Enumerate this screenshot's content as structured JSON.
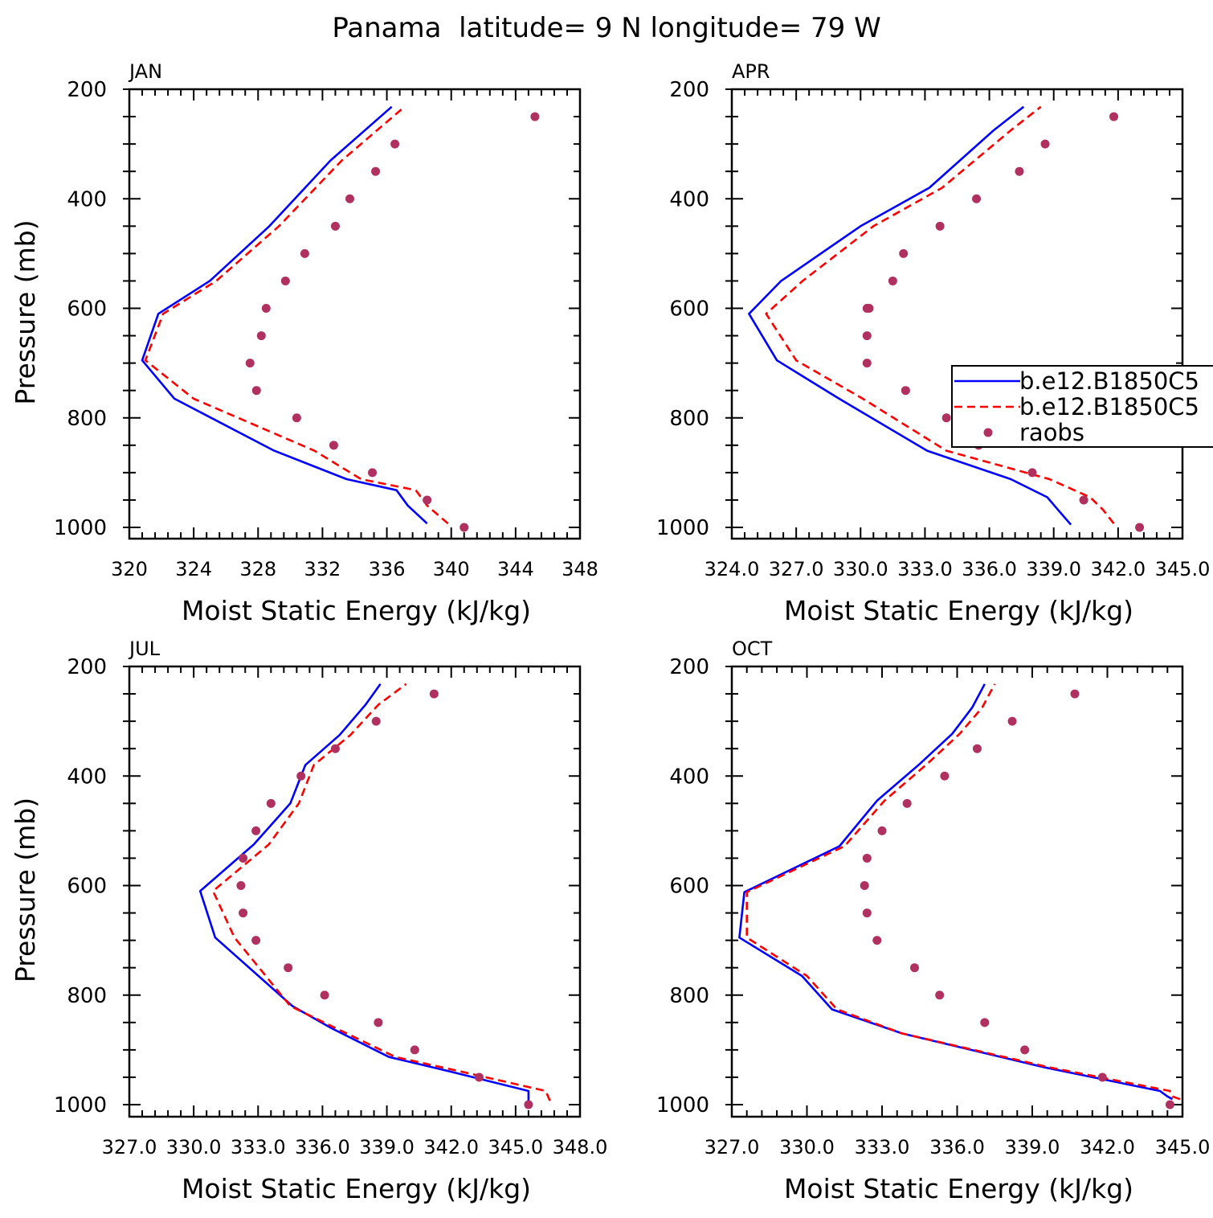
{
  "figure_title": "Panama  latitude= 9 N longitude= 79 W",
  "legend": {
    "entries": [
      {
        "label": "b.e12.B1850C5",
        "style": "solid",
        "color": "#0000ff"
      },
      {
        "label": "b.e12.B1850C5",
        "style": "dashed",
        "color": "#ff0000"
      },
      {
        "label": "raobs",
        "style": "marker",
        "color": "#b03060"
      }
    ]
  },
  "chart_data": [
    {
      "type": "line",
      "title": "JAN",
      "xlabel": "Moist Static Energy (kJ/kg)",
      "ylabel": "Pressure (mb)",
      "xlim": [
        320,
        348
      ],
      "ylim": [
        1000,
        200
      ],
      "xticks": [
        320,
        324,
        328,
        332,
        336,
        340,
        344,
        348
      ],
      "xtick_labels": [
        "320",
        "324",
        "328",
        "332",
        "336",
        "340",
        "344",
        "348"
      ],
      "yticks": [
        200,
        400,
        600,
        800,
        1000
      ],
      "ytick_labels": [
        "200",
        "400",
        "600",
        "800",
        "1000"
      ],
      "series": [
        {
          "style": "solid",
          "color": "#0000ff",
          "x": [
            338.5,
            337.3,
            336.6,
            333.5,
            329.0,
            322.8,
            320.8,
            321.8,
            325.0,
            328.7,
            332.5,
            336.3
          ],
          "y": [
            993,
            960,
            932,
            912,
            860,
            765,
            695,
            610,
            550,
            450,
            330,
            232
          ]
        },
        {
          "style": "dashed",
          "color": "#ff0000",
          "x": [
            339.8,
            338.5,
            337.8,
            334.4,
            331.5,
            324.0,
            321.0,
            322.1,
            325.4,
            329.3,
            333.2,
            337.1
          ],
          "y": [
            993,
            960,
            932,
            912,
            860,
            765,
            695,
            610,
            550,
            450,
            330,
            232
          ]
        },
        {
          "style": "marker",
          "color": "#b03060",
          "x": [
            340.8,
            338.5,
            335.1,
            332.7,
            330.4,
            327.9,
            327.5,
            328.2,
            328.5,
            329.7,
            330.9,
            332.8,
            333.7,
            335.3,
            336.5,
            345.2
          ],
          "y": [
            1000,
            950,
            900,
            850,
            800,
            750,
            700,
            650,
            600,
            550,
            500,
            450,
            400,
            350,
            300,
            250
          ]
        }
      ]
    },
    {
      "type": "line",
      "title": "APR",
      "xlabel": "Moist Static Energy (kJ/kg)",
      "ylabel": "",
      "xlim": [
        324,
        345
      ],
      "ylim": [
        1000,
        200
      ],
      "xticks": [
        324,
        327,
        330,
        333,
        336,
        339,
        342,
        345
      ],
      "xtick_labels": [
        "324.0",
        "327.0",
        "330.0",
        "333.0",
        "336.0",
        "339.0",
        "342.0",
        "345.0"
      ],
      "yticks": [
        200,
        400,
        600,
        800,
        1000
      ],
      "yticks_labels_note": "",
      "ytick_labels": [
        "200",
        "400",
        "600",
        "800",
        "1000"
      ],
      "series": [
        {
          "style": "solid",
          "color": "#0000ff",
          "x": [
            339.8,
            339.2,
            338.7,
            337.0,
            333.1,
            329.0,
            326.1,
            324.8,
            326.3,
            330.0,
            333.2,
            336.2,
            337.6
          ],
          "y": [
            995,
            968,
            945,
            912,
            860,
            765,
            695,
            610,
            550,
            450,
            380,
            275,
            232
          ]
        },
        {
          "style": "dashed",
          "color": "#ff0000",
          "x": [
            341.8,
            341.3,
            340.7,
            338.8,
            334.0,
            330.1,
            327.0,
            325.6,
            327.3,
            330.6,
            333.8,
            337.0,
            338.4
          ],
          "y": [
            993,
            968,
            945,
            912,
            860,
            765,
            695,
            610,
            550,
            450,
            380,
            275,
            232
          ]
        },
        {
          "style": "marker",
          "color": "#b03060",
          "x": [
            343.0,
            340.4,
            338.0,
            335.5,
            334.0,
            332.1,
            330.3,
            330.3,
            330.3,
            330.4,
            331.5,
            332.0,
            333.7,
            335.4,
            337.4,
            338.6,
            341.8
          ],
          "y": [
            1000,
            950,
            900,
            850,
            800,
            750,
            700,
            650,
            600,
            600,
            550,
            500,
            450,
            400,
            350,
            300,
            250
          ]
        }
      ]
    },
    {
      "type": "line",
      "title": "JUL",
      "xlabel": "Moist Static Energy (kJ/kg)",
      "ylabel": "Pressure (mb)",
      "xlim": [
        327,
        348
      ],
      "ylim": [
        1000,
        200
      ],
      "xticks": [
        327,
        330,
        333,
        336,
        339,
        342,
        345,
        348
      ],
      "xtick_labels": [
        "327.0",
        "330.0",
        "333.0",
        "336.0",
        "339.0",
        "342.0",
        "345.0",
        "348.0"
      ],
      "yticks": [
        200,
        400,
        600,
        800,
        1000
      ],
      "ytick_labels": [
        "200",
        "400",
        "600",
        "800",
        "1000"
      ],
      "series": [
        {
          "style": "solid",
          "color": "#0000ff",
          "x": [
            345.6,
            345.6,
            342.0,
            339.1,
            336.4,
            334.6,
            331.0,
            330.3,
            332.8,
            334.5,
            335.2,
            336.8,
            338.0,
            338.7
          ],
          "y": [
            993,
            975,
            940,
            913,
            860,
            820,
            695,
            610,
            525,
            450,
            380,
            325,
            270,
            232
          ]
        },
        {
          "style": "dashed",
          "color": "#ff0000",
          "x": [
            346.6,
            346.4,
            342.5,
            339.4,
            336.6,
            334.5,
            331.9,
            330.9,
            333.5,
            334.9,
            335.6,
            337.3,
            338.6,
            339.9
          ],
          "y": [
            993,
            975,
            940,
            913,
            860,
            820,
            695,
            610,
            525,
            450,
            380,
            325,
            270,
            232
          ]
        },
        {
          "style": "marker",
          "color": "#b03060",
          "x": [
            345.6,
            343.3,
            340.3,
            338.6,
            336.1,
            334.4,
            332.9,
            332.3,
            332.2,
            332.3,
            332.9,
            333.6,
            335.0,
            336.6,
            338.5,
            341.2
          ],
          "y": [
            1000,
            950,
            900,
            850,
            800,
            750,
            700,
            650,
            600,
            550,
            500,
            450,
            400,
            350,
            300,
            250
          ]
        }
      ]
    },
    {
      "type": "line",
      "title": "OCT",
      "xlabel": "Moist Static Energy (kJ/kg)",
      "ylabel": "",
      "xlim": [
        327,
        345
      ],
      "ylim": [
        1000,
        200
      ],
      "xticks": [
        327,
        330,
        333,
        336,
        339,
        342,
        345
      ],
      "xtick_labels": [
        "327.0",
        "330.0",
        "333.0",
        "336.0",
        "339.0",
        "342.0",
        "345.0"
      ],
      "yticks": [
        200,
        400,
        600,
        800,
        1000
      ],
      "ytick_labels": [
        "200",
        "400",
        "600",
        "800",
        "1000"
      ],
      "series": [
        {
          "style": "solid",
          "color": "#0000ff",
          "x": [
            344.6,
            344.4,
            344.1,
            339.5,
            333.8,
            331.0,
            329.8,
            327.3,
            327.5,
            331.3,
            332.8,
            334.5,
            335.8,
            336.6,
            337.1
          ],
          "y": [
            990,
            985,
            975,
            932,
            870,
            826,
            765,
            695,
            612,
            528,
            445,
            378,
            323,
            275,
            232
          ]
        },
        {
          "style": "dashed",
          "color": "#ff0000",
          "x": [
            344.9,
            344.6,
            344.5,
            339.7,
            333.8,
            331.2,
            330.0,
            327.6,
            327.6,
            331.5,
            333.1,
            334.8,
            336.1,
            337.0,
            337.5
          ],
          "y": [
            990,
            985,
            975,
            932,
            870,
            826,
            765,
            695,
            612,
            528,
            445,
            378,
            323,
            275,
            232
          ]
        },
        {
          "style": "marker",
          "color": "#b03060",
          "x": [
            344.5,
            341.8,
            338.7,
            337.1,
            335.3,
            334.3,
            332.8,
            332.4,
            332.3,
            332.4,
            333.0,
            334.0,
            335.5,
            336.8,
            338.2,
            340.7
          ],
          "y": [
            1000,
            950,
            900,
            850,
            800,
            750,
            700,
            650,
            600,
            550,
            500,
            450,
            400,
            350,
            300,
            250
          ]
        }
      ]
    }
  ]
}
